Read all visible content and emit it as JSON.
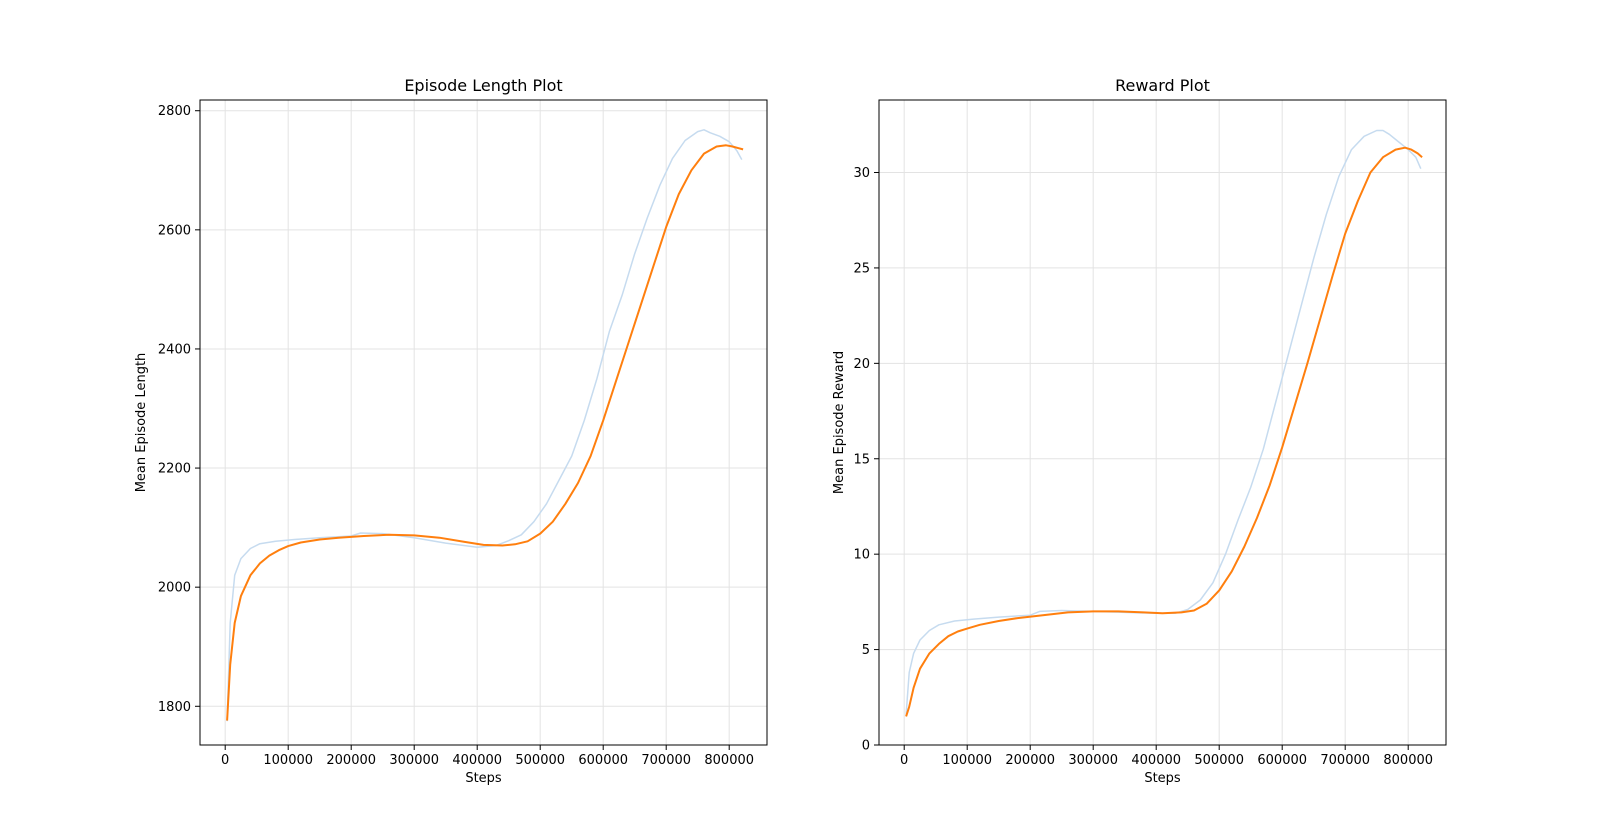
{
  "chart_data": [
    {
      "type": "line",
      "title": "Episode Length Plot",
      "xlabel": "Steps",
      "ylabel": "Mean Episode Length",
      "xlim": [
        -40000,
        860000
      ],
      "ylim": [
        1735,
        2818
      ],
      "xticks": [
        0,
        100000,
        200000,
        300000,
        400000,
        500000,
        600000,
        700000,
        800000
      ],
      "xtick_labels": [
        "0",
        "100000",
        "200000",
        "300000",
        "400000",
        "500000",
        "600000",
        "700000",
        "800000"
      ],
      "yticks": [
        1800,
        2000,
        2200,
        2400,
        2600,
        2800
      ],
      "ytick_labels": [
        "1800",
        "2000",
        "2200",
        "2400",
        "2600",
        "2800"
      ],
      "grid": true,
      "series": [
        {
          "color": "#c6dbef",
          "x": [
            3000,
            8000,
            15000,
            25000,
            40000,
            55000,
            80000,
            110000,
            150000,
            200000,
            215000,
            250000,
            300000,
            350000,
            400000,
            430000,
            450000,
            470000,
            490000,
            510000,
            530000,
            550000,
            570000,
            590000,
            610000,
            630000,
            650000,
            670000,
            690000,
            710000,
            730000,
            750000,
            760000,
            770000,
            785000,
            800000,
            812000,
            820000
          ],
          "y": [
            1775,
            1940,
            2020,
            2048,
            2065,
            2073,
            2077,
            2080,
            2083,
            2086,
            2091,
            2090,
            2083,
            2074,
            2067,
            2070,
            2078,
            2088,
            2110,
            2140,
            2180,
            2220,
            2280,
            2350,
            2430,
            2490,
            2560,
            2620,
            2675,
            2720,
            2750,
            2765,
            2768,
            2763,
            2757,
            2748,
            2733,
            2718
          ]
        },
        {
          "color": "#ff7f0e",
          "x": [
            3000,
            8000,
            15000,
            25000,
            40000,
            55000,
            70000,
            85000,
            100000,
            120000,
            150000,
            180000,
            220000,
            260000,
            300000,
            340000,
            380000,
            410000,
            440000,
            460000,
            480000,
            500000,
            520000,
            540000,
            560000,
            580000,
            600000,
            620000,
            640000,
            660000,
            680000,
            700000,
            720000,
            740000,
            760000,
            780000,
            795000,
            805000,
            815000,
            822000
          ],
          "y": [
            1776,
            1870,
            1940,
            1985,
            2020,
            2040,
            2053,
            2062,
            2069,
            2075,
            2080,
            2083,
            2086,
            2088,
            2087,
            2083,
            2076,
            2071,
            2070,
            2072,
            2077,
            2090,
            2110,
            2140,
            2175,
            2220,
            2280,
            2345,
            2410,
            2475,
            2540,
            2605,
            2660,
            2700,
            2728,
            2740,
            2742,
            2740,
            2737,
            2735
          ]
        }
      ]
    },
    {
      "type": "line",
      "title": "Reward Plot",
      "xlabel": "Steps",
      "ylabel": "Mean Episode Reward",
      "xlim": [
        -40000,
        860000
      ],
      "ylim": [
        0,
        33.8
      ],
      "xticks": [
        0,
        100000,
        200000,
        300000,
        400000,
        500000,
        600000,
        700000,
        800000
      ],
      "xtick_labels": [
        "0",
        "100000",
        "200000",
        "300000",
        "400000",
        "500000",
        "600000",
        "700000",
        "800000"
      ],
      "yticks": [
        0,
        5,
        10,
        15,
        20,
        25,
        30
      ],
      "ytick_labels": [
        "0",
        "5",
        "10",
        "15",
        "20",
        "25",
        "30"
      ],
      "grid": true,
      "series": [
        {
          "color": "#c6dbef",
          "x": [
            3000,
            8000,
            15000,
            25000,
            40000,
            55000,
            80000,
            110000,
            150000,
            200000,
            215000,
            250000,
            300000,
            350000,
            400000,
            430000,
            450000,
            470000,
            490000,
            510000,
            530000,
            550000,
            570000,
            590000,
            610000,
            630000,
            650000,
            670000,
            690000,
            710000,
            730000,
            750000,
            760000,
            770000,
            785000,
            800000,
            812000,
            820000
          ],
          "y": [
            1.6,
            3.8,
            4.8,
            5.5,
            6.0,
            6.3,
            6.5,
            6.6,
            6.7,
            6.8,
            7.0,
            7.05,
            7.0,
            6.95,
            6.9,
            6.9,
            7.1,
            7.6,
            8.5,
            10.0,
            11.8,
            13.5,
            15.5,
            18.0,
            20.5,
            23.0,
            25.5,
            27.8,
            29.8,
            31.2,
            31.9,
            32.2,
            32.2,
            32.0,
            31.6,
            31.2,
            30.8,
            30.2
          ]
        },
        {
          "color": "#ff7f0e",
          "x": [
            3000,
            8000,
            15000,
            25000,
            40000,
            55000,
            70000,
            85000,
            100000,
            120000,
            150000,
            180000,
            220000,
            260000,
            300000,
            340000,
            380000,
            410000,
            440000,
            460000,
            480000,
            500000,
            520000,
            540000,
            560000,
            580000,
            600000,
            620000,
            640000,
            660000,
            680000,
            700000,
            720000,
            740000,
            760000,
            780000,
            795000,
            805000,
            815000,
            822000
          ],
          "y": [
            1.5,
            2.0,
            3.0,
            4.0,
            4.8,
            5.3,
            5.7,
            5.95,
            6.1,
            6.3,
            6.5,
            6.65,
            6.8,
            6.95,
            7.0,
            7.0,
            6.95,
            6.9,
            6.95,
            7.05,
            7.4,
            8.1,
            9.1,
            10.4,
            11.9,
            13.6,
            15.6,
            17.8,
            20.0,
            22.3,
            24.6,
            26.8,
            28.5,
            30.0,
            30.8,
            31.2,
            31.3,
            31.2,
            31.0,
            30.8
          ]
        }
      ]
    }
  ]
}
